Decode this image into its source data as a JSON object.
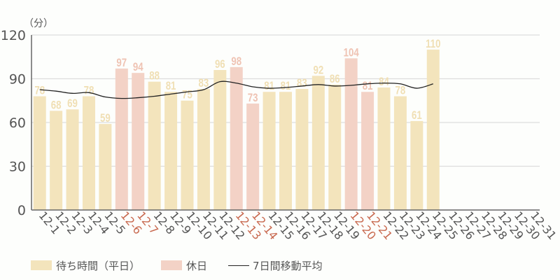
{
  "chart_data": {
    "type": "bar",
    "title": "",
    "unit_label": "（分）",
    "xlabel": "",
    "ylabel": "（分）",
    "ylim": [
      0,
      120
    ],
    "yticks": [
      0,
      30,
      60,
      90,
      120
    ],
    "grid": true,
    "legend_position": "bottom-left",
    "categories": [
      "12-1",
      "12-2",
      "12-3",
      "12-4",
      "12-5",
      "12-6",
      "12-7",
      "12-8",
      "12-9",
      "12-10",
      "12-11",
      "12-12",
      "12-13",
      "12-14",
      "12-15",
      "12-16",
      "12-17",
      "12-18",
      "12-19",
      "12-20",
      "12-21",
      "12-22",
      "12-23",
      "12-24",
      "12-25",
      "12-26",
      "12-27",
      "12-28",
      "12-29",
      "12-30",
      "12-31"
    ],
    "holidays": [
      "12-6",
      "12-7",
      "12-13",
      "12-14",
      "12-20",
      "12-21"
    ],
    "series": [
      {
        "name": "待ち時間（平日）/休日",
        "type": "bar",
        "values": [
          78,
          68,
          69,
          78,
          59,
          97,
          94,
          88,
          81,
          75,
          83,
          96,
          98,
          73,
          81,
          81,
          83,
          92,
          86,
          104,
          81,
          84,
          78,
          61,
          110,
          null,
          null,
          null,
          null,
          null,
          null
        ]
      },
      {
        "name": "7日間移動平均",
        "type": "line",
        "values": [
          82.5,
          81.5,
          80,
          80.5,
          77.5,
          76.5,
          77,
          78,
          79.5,
          81,
          82.5,
          88,
          87,
          84.5,
          83.5,
          84,
          85,
          86,
          85,
          85.5,
          86.5,
          87,
          86.5,
          83.5,
          86.5,
          null,
          null,
          null,
          null,
          null,
          null
        ]
      }
    ],
    "colors": {
      "weekday": "#f3e4bc",
      "holiday": "#f3d2c6",
      "weekday_label": "#f0dfb4",
      "holiday_label": "#efc3b3",
      "holiday_tick": "#c8694f",
      "tick": "#555555",
      "line": "#222222",
      "grid": "#dddddd",
      "axis": "#666666"
    }
  },
  "legend": {
    "weekday": "待ち時間（平日）",
    "holiday": "休日",
    "moving_average": "7日間移動平均"
  }
}
